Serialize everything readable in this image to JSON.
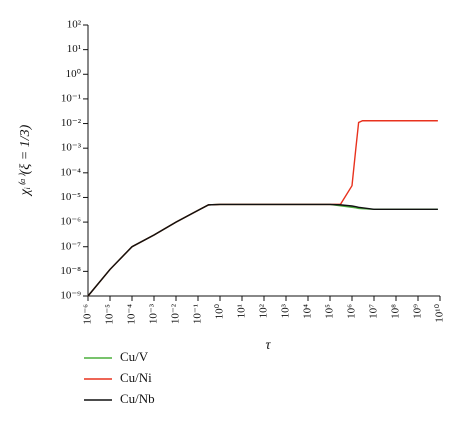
{
  "chart_data": {
    "type": "line",
    "xscale": "log",
    "yscale": "log",
    "grid": false,
    "legend": "bottom-left",
    "xlabel": "τ",
    "ylabel": "χᵢ⁽ᵅ⁾(ξ = 1/3)",
    "xlim": [
      1e-06,
      10000000000.0
    ],
    "ylim": [
      1e-09,
      100
    ],
    "xticks": [
      {
        "value": 1e-06,
        "label": "10⁻⁶"
      },
      {
        "value": 1e-05,
        "label": "10⁻⁵"
      },
      {
        "value": 0.0001,
        "label": "10⁻⁴"
      },
      {
        "value": 0.001,
        "label": "10⁻³"
      },
      {
        "value": 0.01,
        "label": "10⁻²"
      },
      {
        "value": 0.1,
        "label": "10⁻¹"
      },
      {
        "value": 1,
        "label": "10⁰"
      },
      {
        "value": 10,
        "label": "10¹"
      },
      {
        "value": 100,
        "label": "10²"
      },
      {
        "value": 1000,
        "label": "10³"
      },
      {
        "value": 10000,
        "label": "10⁴"
      },
      {
        "value": 100000,
        "label": "10⁵"
      },
      {
        "value": 1000000,
        "label": "10⁶"
      },
      {
        "value": 10000000,
        "label": "10⁷"
      },
      {
        "value": 100000000,
        "label": "10⁸"
      },
      {
        "value": 1000000000,
        "label": "10⁹"
      },
      {
        "value": 10000000000,
        "label": "10¹⁰"
      }
    ],
    "yticks": [
      {
        "value": 1e-09,
        "label": "10⁻⁹"
      },
      {
        "value": 1e-08,
        "label": "10⁻⁸"
      },
      {
        "value": 1e-07,
        "label": "10⁻⁷"
      },
      {
        "value": 1e-06,
        "label": "10⁻⁶"
      },
      {
        "value": 1e-05,
        "label": "10⁻⁵"
      },
      {
        "value": 0.0001,
        "label": "10⁻⁴"
      },
      {
        "value": 0.001,
        "label": "10⁻³"
      },
      {
        "value": 0.01,
        "label": "10⁻²"
      },
      {
        "value": 0.1,
        "label": "10⁻¹"
      },
      {
        "value": 1,
        "label": "10⁰"
      },
      {
        "value": 10,
        "label": "10¹"
      },
      {
        "value": 100,
        "label": "10²"
      }
    ],
    "x": [
      1e-06,
      1e-05,
      0.0001,
      0.001,
      0.01,
      0.1,
      0.3,
      1,
      10,
      100,
      1000,
      10000,
      100000,
      300000,
      1000000,
      1500000,
      2000000,
      3000000,
      10000000,
      100000000,
      1000000000,
      8000000000
    ],
    "series": [
      {
        "name": "Cu/V",
        "color": "#4caf3c",
        "values": [
          1e-09,
          1.2e-08,
          1e-07,
          3e-07,
          1e-06,
          3e-06,
          5e-06,
          5.2e-06,
          5.2e-06,
          5.2e-06,
          5.2e-06,
          5.2e-06,
          5.2e-06,
          4.6e-06,
          4e-06,
          3.8e-06,
          3.6e-06,
          3.5e-06,
          3.3e-06,
          3.3e-06,
          3.3e-06,
          3.3e-06
        ]
      },
      {
        "name": "Cu/Ni",
        "color": "#e8321e",
        "values": [
          1e-09,
          1.2e-08,
          1e-07,
          3e-07,
          1e-06,
          3e-06,
          5e-06,
          5.2e-06,
          5.2e-06,
          5.2e-06,
          5.2e-06,
          5.2e-06,
          5.2e-06,
          5.3e-06,
          3e-05,
          0.001,
          0.011,
          0.013,
          0.013,
          0.013,
          0.013,
          0.013
        ]
      },
      {
        "name": "Cu/Nb",
        "color": "#111111",
        "values": [
          1e-09,
          1.2e-08,
          1e-07,
          3e-07,
          1e-06,
          3e-06,
          5e-06,
          5.2e-06,
          5.2e-06,
          5.2e-06,
          5.2e-06,
          5.2e-06,
          5.2e-06,
          5e-06,
          4.5e-06,
          4.2e-06,
          4e-06,
          3.8e-06,
          3.3e-06,
          3.3e-06,
          3.3e-06,
          3.3e-06
        ]
      }
    ]
  }
}
